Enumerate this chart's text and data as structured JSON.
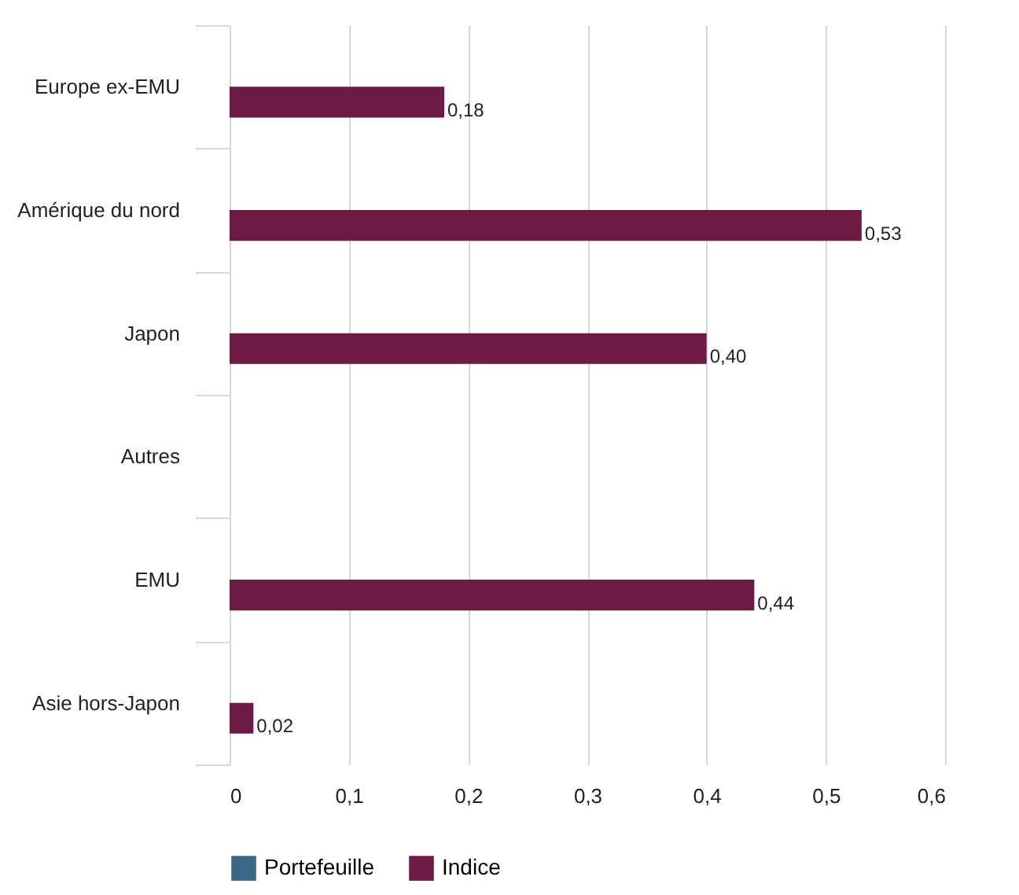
{
  "chart_data": {
    "type": "bar",
    "orientation": "horizontal",
    "categories": [
      "Europe ex-EMU",
      "Amérique du nord",
      "Japon",
      "Autres",
      "EMU",
      "Asie hors-Japon"
    ],
    "series": [
      {
        "name": "Portefeuille",
        "color": "#3b6985",
        "values": [
          null,
          null,
          null,
          null,
          null,
          null
        ]
      },
      {
        "name": "Indice",
        "color": "#6d1a45",
        "values": [
          0.18,
          0.53,
          0.4,
          null,
          0.44,
          0.02
        ],
        "value_labels": [
          "0,18",
          "0,53",
          "0,40",
          null,
          "0,44",
          "0,02"
        ]
      }
    ],
    "xlim": [
      0,
      0.6
    ],
    "xticks": [
      0,
      {
        "value": 0.1,
        "label": "0,1"
      },
      {
        "value": 0.2,
        "label": "0,2"
      },
      {
        "value": 0.3,
        "label": "0,3"
      },
      {
        "value": 0.4,
        "label": "0,4"
      },
      {
        "value": 0.5,
        "label": "0,5"
      },
      {
        "value": 0.6,
        "label": "0,6"
      }
    ],
    "grid": "x",
    "legend": "bottom"
  }
}
